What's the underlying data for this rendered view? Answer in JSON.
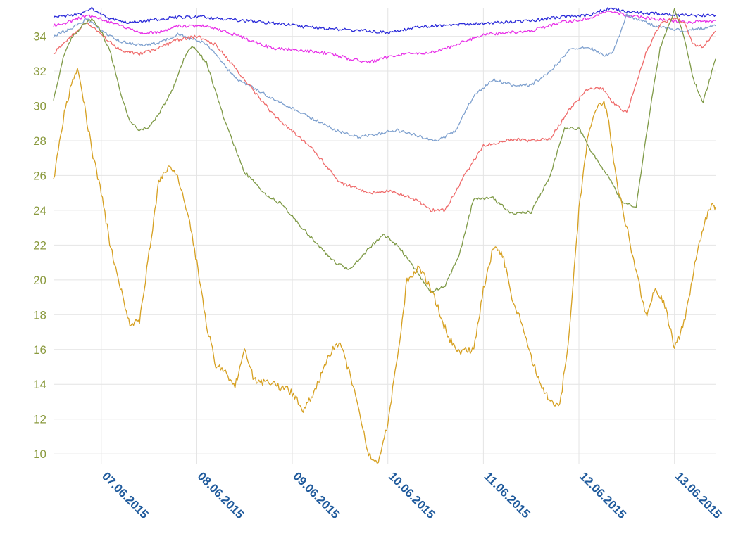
{
  "chart_data": {
    "type": "line",
    "title": "",
    "xlabel": "",
    "ylabel": "",
    "ylim": [
      9.4,
      35.6
    ],
    "xlim": [
      "06.06.2015 12:00",
      "13.06.2015 10:00"
    ],
    "grid": true,
    "legend": "none",
    "y_ticks": [
      "10",
      "12",
      "14",
      "16",
      "18",
      "20",
      "22",
      "24",
      "26",
      "28",
      "30",
      "32",
      "34"
    ],
    "x_ticks": [
      "07.06.2015",
      "08.06.2015",
      "09.06.2015",
      "10.06.2015",
      "11.06.2015",
      "12.06.2015",
      "13.06.2015"
    ],
    "x_unit": "day",
    "series": [
      {
        "color": "#2b2bd9",
        "x": [
          0.0,
          0.15,
          0.3,
          0.4,
          0.55,
          0.75,
          1.0,
          1.3,
          1.6,
          2.0,
          2.4,
          2.7,
          3.0,
          3.3,
          3.5,
          3.7,
          3.8,
          4.0,
          4.3,
          4.7,
          5.0,
          5.3,
          5.6,
          5.75,
          5.85,
          6.0,
          6.3,
          6.6,
          6.93
        ],
        "y": [
          35.1,
          35.2,
          35.3,
          35.6,
          35.1,
          34.8,
          34.9,
          35.1,
          35.1,
          34.9,
          34.7,
          34.5,
          34.4,
          34.3,
          34.2,
          34.4,
          34.5,
          34.6,
          34.7,
          34.8,
          34.9,
          35.1,
          35.2,
          35.5,
          35.6,
          35.4,
          35.3,
          35.2,
          35.2
        ]
      },
      {
        "color": "#e830e8",
        "x": [
          0.0,
          0.2,
          0.35,
          0.5,
          0.7,
          0.9,
          1.1,
          1.3,
          1.6,
          2.0,
          2.3,
          2.6,
          2.9,
          3.1,
          3.3,
          3.5,
          3.7,
          3.9,
          4.1,
          4.5,
          5.0,
          5.3,
          5.6,
          5.8,
          6.0,
          6.3,
          6.6,
          6.93
        ],
        "y": [
          34.6,
          34.9,
          35.2,
          35.0,
          34.6,
          34.2,
          34.2,
          34.6,
          34.6,
          33.9,
          33.3,
          33.2,
          33.0,
          32.7,
          32.5,
          32.8,
          33.0,
          33.0,
          33.3,
          34.1,
          34.3,
          34.8,
          35.0,
          35.5,
          35.2,
          35.0,
          34.8,
          34.9
        ]
      },
      {
        "color": "#7fa1cf",
        "x": [
          0.0,
          0.2,
          0.35,
          0.5,
          0.7,
          0.9,
          1.1,
          1.3,
          1.6,
          1.9,
          2.3,
          2.7,
          3.0,
          3.2,
          3.4,
          3.6,
          3.8,
          4.0,
          4.2,
          4.4,
          4.6,
          4.8,
          5.0,
          5.2,
          5.4,
          5.6,
          5.75,
          5.85,
          6.0,
          6.3,
          6.6,
          6.93
        ],
        "y": [
          34.0,
          34.5,
          35.0,
          34.3,
          33.7,
          33.5,
          33.6,
          34.1,
          33.6,
          31.6,
          30.4,
          29.3,
          28.5,
          28.2,
          28.4,
          28.6,
          28.3,
          28.0,
          28.5,
          30.6,
          31.5,
          31.2,
          31.2,
          32.0,
          33.2,
          33.4,
          32.9,
          33.0,
          35.2,
          34.6,
          34.3,
          34.6
        ]
      },
      {
        "color": "#ef6b6b",
        "x": [
          0.0,
          0.2,
          0.35,
          0.5,
          0.7,
          0.9,
          1.1,
          1.3,
          1.5,
          1.7,
          1.9,
          2.3,
          2.7,
          3.0,
          3.3,
          3.55,
          3.8,
          3.95,
          4.1,
          4.3,
          4.5,
          4.8,
          5.0,
          5.2,
          5.4,
          5.6,
          5.75,
          5.85,
          6.0,
          6.2,
          6.35,
          6.5,
          6.6,
          6.7,
          6.8,
          6.93
        ],
        "y": [
          33.0,
          34.1,
          34.8,
          34.1,
          33.2,
          33.0,
          33.3,
          33.8,
          34.0,
          33.5,
          32.2,
          29.5,
          27.6,
          25.6,
          25.0,
          25.1,
          24.6,
          24.0,
          24.0,
          26.0,
          27.7,
          28.1,
          28.0,
          28.1,
          29.8,
          31.0,
          31.0,
          30.2,
          29.6,
          33.0,
          34.7,
          35.1,
          34.8,
          33.5,
          33.4,
          34.3
        ]
      },
      {
        "color": "#7f9a47",
        "x": [
          0.0,
          0.1,
          0.2,
          0.3,
          0.4,
          0.5,
          0.6,
          0.7,
          0.8,
          0.9,
          1.0,
          1.1,
          1.25,
          1.35,
          1.45,
          1.6,
          1.8,
          2.0,
          2.2,
          2.4,
          2.6,
          2.8,
          2.95,
          3.1,
          3.3,
          3.45,
          3.6,
          3.8,
          3.95,
          4.1,
          4.25,
          4.4,
          4.6,
          4.8,
          5.0,
          5.2,
          5.35,
          5.5,
          5.65,
          5.8,
          5.95,
          6.1,
          6.25,
          6.35,
          6.5,
          6.6,
          6.7,
          6.8,
          6.93
        ],
        "y": [
          30.3,
          32.8,
          34.0,
          34.6,
          35.0,
          34.3,
          33.0,
          30.8,
          29.1,
          28.6,
          28.8,
          29.5,
          31.0,
          32.5,
          33.5,
          32.5,
          29.0,
          26.2,
          25.0,
          24.3,
          23.0,
          21.8,
          21.0,
          20.6,
          21.8,
          22.6,
          22.0,
          20.5,
          19.3,
          19.7,
          21.5,
          24.7,
          24.7,
          23.8,
          23.9,
          26.0,
          28.7,
          28.7,
          27.2,
          26.0,
          24.5,
          24.2,
          30.0,
          33.3,
          35.5,
          34.0,
          31.5,
          30.2,
          32.7
        ]
      },
      {
        "color": "#d6a021",
        "x": [
          0.0,
          0.1,
          0.2,
          0.25,
          0.3,
          0.4,
          0.5,
          0.6,
          0.7,
          0.8,
          0.9,
          1.0,
          1.1,
          1.2,
          1.3,
          1.4,
          1.5,
          1.6,
          1.7,
          1.8,
          1.9,
          2.0,
          2.1,
          2.2,
          2.3,
          2.4,
          2.5,
          2.6,
          2.7,
          2.8,
          2.9,
          3.0,
          3.1,
          3.2,
          3.3,
          3.35,
          3.4,
          3.5,
          3.6,
          3.7,
          3.8,
          3.85,
          3.9,
          4.0,
          4.1,
          4.2,
          4.3,
          4.4,
          4.5,
          4.6,
          4.7,
          4.8,
          4.9,
          5.0,
          5.1,
          5.2,
          5.3,
          5.4,
          5.5,
          5.6,
          5.7,
          5.75,
          5.8,
          5.9,
          6.0,
          6.1,
          6.2,
          6.3,
          6.4,
          6.5,
          6.6,
          6.7,
          6.8,
          6.9,
          6.93
        ],
        "y": [
          25.7,
          29.2,
          31.5,
          32.2,
          30.8,
          27.5,
          25.0,
          21.8,
          19.6,
          17.5,
          17.6,
          21.5,
          25.5,
          26.5,
          26.0,
          24.0,
          21.0,
          17.5,
          15.0,
          14.8,
          13.8,
          16.2,
          14.2,
          14.1,
          14.0,
          13.8,
          13.5,
          12.5,
          13.2,
          14.5,
          15.8,
          16.5,
          14.6,
          12.4,
          10.0,
          9.6,
          9.6,
          11.8,
          15.5,
          20.0,
          20.6,
          20.5,
          20.0,
          18.8,
          17.2,
          16.0,
          15.9,
          16.0,
          19.5,
          21.8,
          21.5,
          19.0,
          17.5,
          15.5,
          14.0,
          13.0,
          12.7,
          17.0,
          24.0,
          28.5,
          30.0,
          30.3,
          29.5,
          25.5,
          23.0,
          20.5,
          17.9,
          19.5,
          18.5,
          16.1,
          17.5,
          20.5,
          23.0,
          24.5,
          24.2
        ]
      }
    ]
  }
}
